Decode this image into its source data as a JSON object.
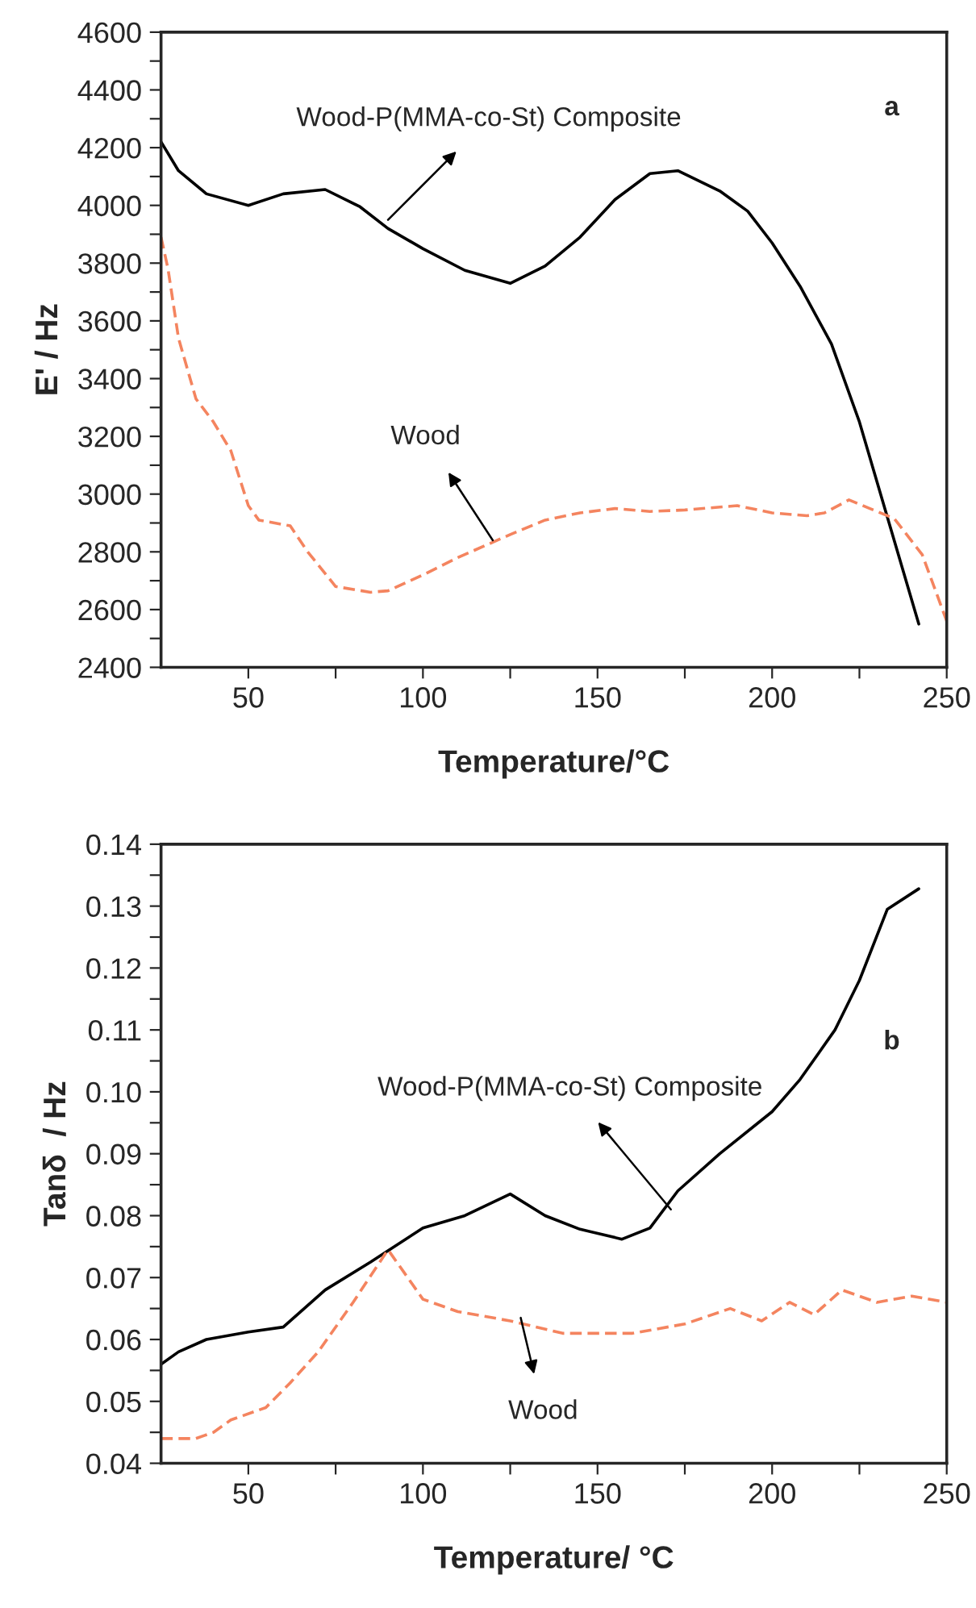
{
  "chart_data": [
    {
      "type": "line",
      "xlabel": "Temperature/°C",
      "ylabel": "E' / Hz",
      "xlim": [
        25,
        250
      ],
      "xticks": [
        50,
        {
          "value": 75,
          "label": null
        },
        100,
        {
          "value": 125,
          "label": null
        },
        150,
        {
          "value": 175,
          "label": null
        },
        200,
        {
          "value": 225,
          "label": null
        },
        250
      ],
      "ylim": [
        2400,
        4600
      ],
      "yticks": [
        2400,
        {
          "value": 2500,
          "label": null
        },
        2600,
        {
          "value": 2700,
          "label": null
        },
        2800,
        {
          "value": 2900,
          "label": null
        },
        3000,
        {
          "value": 3100,
          "label": null
        },
        3200,
        {
          "value": 3300,
          "label": null
        },
        3400,
        {
          "value": 3500,
          "label": null
        },
        3600,
        {
          "value": 3700,
          "label": null
        },
        3800,
        {
          "value": 3900,
          "label": null
        },
        4000,
        {
          "value": 4100,
          "label": null
        },
        4200,
        {
          "value": 4300,
          "label": null
        },
        4400,
        {
          "value": 4500,
          "label": null
        },
        4600
      ],
      "grid": false,
      "legend": false,
      "series": [
        {
          "color": "#000000",
          "line_style": "solid",
          "x": [
            25,
            30,
            38,
            50,
            60,
            72,
            82,
            90,
            100,
            112,
            125,
            135,
            145,
            155,
            165,
            173,
            185,
            193,
            200,
            208,
            217,
            225,
            233,
            242
          ],
          "values": [
            4220,
            4120,
            4040,
            4000,
            4040,
            4055,
            3995,
            3920,
            3850,
            3775,
            3730,
            3790,
            3890,
            4020,
            4110,
            4120,
            4050,
            3980,
            3870,
            3720,
            3520,
            3250,
            2920,
            2550
          ]
        },
        {
          "color": "#f4845f",
          "line_style": "dashed",
          "x": [
            25,
            27,
            30,
            35,
            40,
            45,
            50,
            53,
            62,
            67,
            75,
            85,
            90,
            100,
            110,
            125,
            135,
            145,
            155,
            165,
            175,
            190,
            200,
            210,
            215,
            222,
            228,
            235,
            243,
            250
          ],
          "values": [
            3890,
            3780,
            3540,
            3330,
            3250,
            3150,
            2960,
            2910,
            2890,
            2800,
            2680,
            2660,
            2665,
            2720,
            2780,
            2860,
            2910,
            2935,
            2950,
            2940,
            2945,
            2960,
            2935,
            2925,
            2935,
            2980,
            2950,
            2915,
            2790,
            2560
          ]
        }
      ],
      "annotations": [
        {
          "text": "Wood-P(MMA-co-St) Composite",
          "x": 90,
          "y": 3950
        },
        {
          "text": "Wood",
          "x": 120,
          "y": 2840
        },
        "a"
      ]
    },
    {
      "type": "line",
      "xlabel": "Temperature/ °C",
      "ylabel": "Tanδ  / Hz",
      "xlim": [
        25,
        250
      ],
      "xticks": [
        50,
        {
          "value": 75,
          "label": null
        },
        100,
        {
          "value": 125,
          "label": null
        },
        150,
        {
          "value": 175,
          "label": null
        },
        200,
        {
          "value": 225,
          "label": null
        },
        250
      ],
      "ylim": [
        0.04,
        0.14
      ],
      "yticks": [
        {
          "value": 0.04,
          "label": "0.04"
        },
        {
          "value": 0.045,
          "label": null
        },
        {
          "value": 0.05,
          "label": "0.05"
        },
        {
          "value": 0.055,
          "label": null
        },
        {
          "value": 0.06,
          "label": "0.06"
        },
        {
          "value": 0.065,
          "label": null
        },
        {
          "value": 0.07,
          "label": "0.07"
        },
        {
          "value": 0.075,
          "label": null
        },
        {
          "value": 0.08,
          "label": "0.08"
        },
        {
          "value": 0.085,
          "label": null
        },
        {
          "value": 0.09,
          "label": "0.09"
        },
        {
          "value": 0.095,
          "label": null
        },
        {
          "value": 0.1,
          "label": "0.10"
        },
        {
          "value": 0.105,
          "label": null
        },
        {
          "value": 0.11,
          "label": "0.11"
        },
        {
          "value": 0.115,
          "label": null
        },
        {
          "value": 0.12,
          "label": "0.12"
        },
        {
          "value": 0.125,
          "label": null
        },
        {
          "value": 0.13,
          "label": "0.13"
        },
        {
          "value": 0.135,
          "label": null
        },
        {
          "value": 0.14,
          "label": "0.14"
        }
      ],
      "grid": false,
      "legend": false,
      "series": [
        {
          "color": "#000000",
          "line_style": "solid",
          "x": [
            25,
            30,
            38,
            50,
            60,
            72,
            85,
            100,
            112,
            125,
            135,
            145,
            157,
            165,
            173,
            185,
            200,
            208,
            218,
            225,
            233,
            242
          ],
          "values": [
            0.056,
            0.058,
            0.06,
            0.0612,
            0.062,
            0.068,
            0.0725,
            0.078,
            0.08,
            0.0835,
            0.08,
            0.0778,
            0.0762,
            0.078,
            0.084,
            0.09,
            0.0968,
            0.102,
            0.11,
            0.118,
            0.1295,
            0.1328
          ]
        },
        {
          "color": "#f4845f",
          "line_style": "dashed",
          "x": [
            25,
            35,
            40,
            45,
            55,
            62,
            70,
            80,
            90,
            100,
            110,
            125,
            140,
            160,
            175,
            188,
            197,
            205,
            212,
            220,
            230,
            240,
            250
          ],
          "values": [
            0.044,
            0.044,
            0.045,
            0.047,
            0.049,
            0.053,
            0.058,
            0.066,
            0.0745,
            0.0665,
            0.0645,
            0.063,
            0.061,
            0.061,
            0.0625,
            0.065,
            0.063,
            0.066,
            0.064,
            0.068,
            0.066,
            0.067,
            0.066
          ]
        }
      ],
      "annotations": [
        {
          "text": "Wood-P(MMA-co-St) Composite",
          "x": 171,
          "y": 0.081
        },
        {
          "text": "Wood",
          "x": 128,
          "y": 0.0635
        },
        "b"
      ]
    }
  ]
}
